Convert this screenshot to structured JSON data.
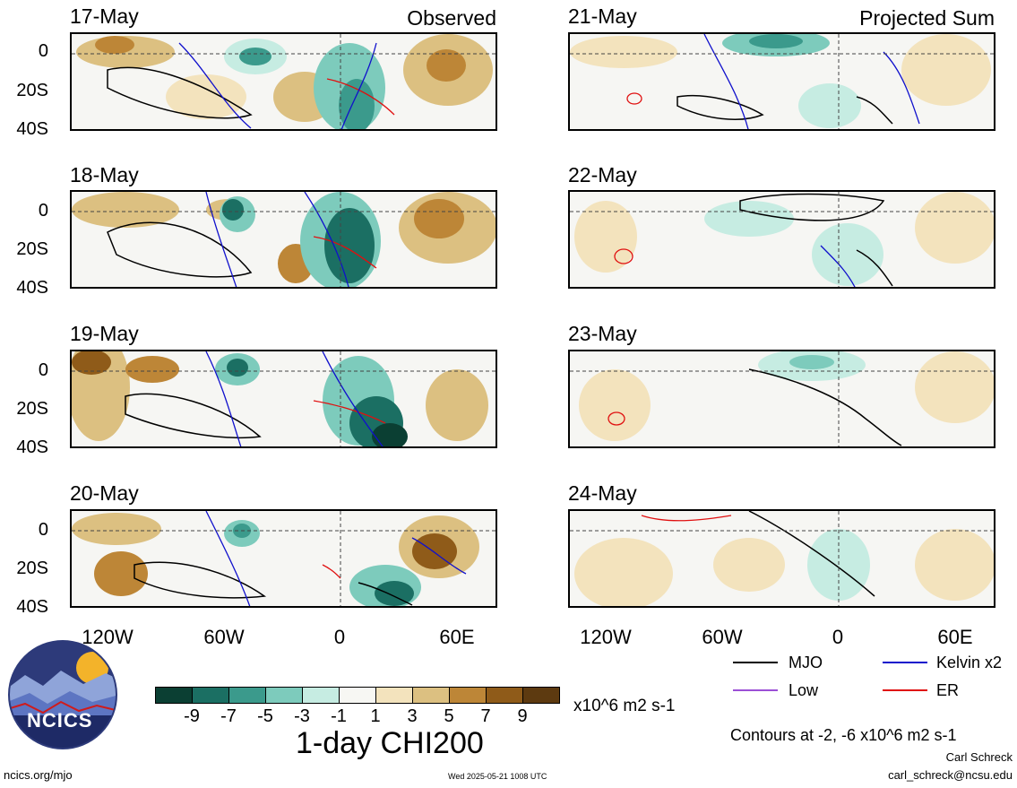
{
  "panels": [
    {
      "date": "17-May",
      "tag": "Observed"
    },
    {
      "date": "18-May",
      "tag": ""
    },
    {
      "date": "19-May",
      "tag": ""
    },
    {
      "date": "20-May",
      "tag": ""
    },
    {
      "date": "21-May",
      "tag": "Projected Sum"
    },
    {
      "date": "22-May",
      "tag": ""
    },
    {
      "date": "23-May",
      "tag": ""
    },
    {
      "date": "24-May",
      "tag": ""
    }
  ],
  "axes": {
    "y_ticks": [
      "0",
      "20S",
      "40S"
    ],
    "x_ticks": [
      "120W",
      "60W",
      "0",
      "60E"
    ]
  },
  "legend": {
    "mjo": "MJO",
    "kelvin": "Kelvin x2",
    "low": "Low",
    "er": "ER",
    "colors": {
      "mjo": "#000000",
      "kelvin": "#1010cc",
      "low": "#9b4fd6",
      "er": "#e01010"
    },
    "contour_note": "Contours at -2, -6 x10^6 m2 s-1"
  },
  "colorbar": {
    "ticks": [
      "-9",
      "-7",
      "-5",
      "-3",
      "-1",
      "1",
      "3",
      "5",
      "7",
      "9"
    ],
    "units": "x10^6 m2 s-1",
    "colors": [
      "#0b3f33",
      "#1b6f63",
      "#3b9a8c",
      "#7dcbbc",
      "#c6ece2",
      "#f7f7f3",
      "#f3e3bd",
      "#dcc081",
      "#bd8637",
      "#8f5b19",
      "#5d3a10"
    ]
  },
  "title": "1-day CHI200",
  "logo": {
    "text": "NCICS"
  },
  "footer": {
    "url": "ncics.org/mjo",
    "timestamp": "Wed 2025-05-21 1008 UTC",
    "author": "Carl Schreck",
    "email": "carl_schreck@ncsu.edu"
  }
}
